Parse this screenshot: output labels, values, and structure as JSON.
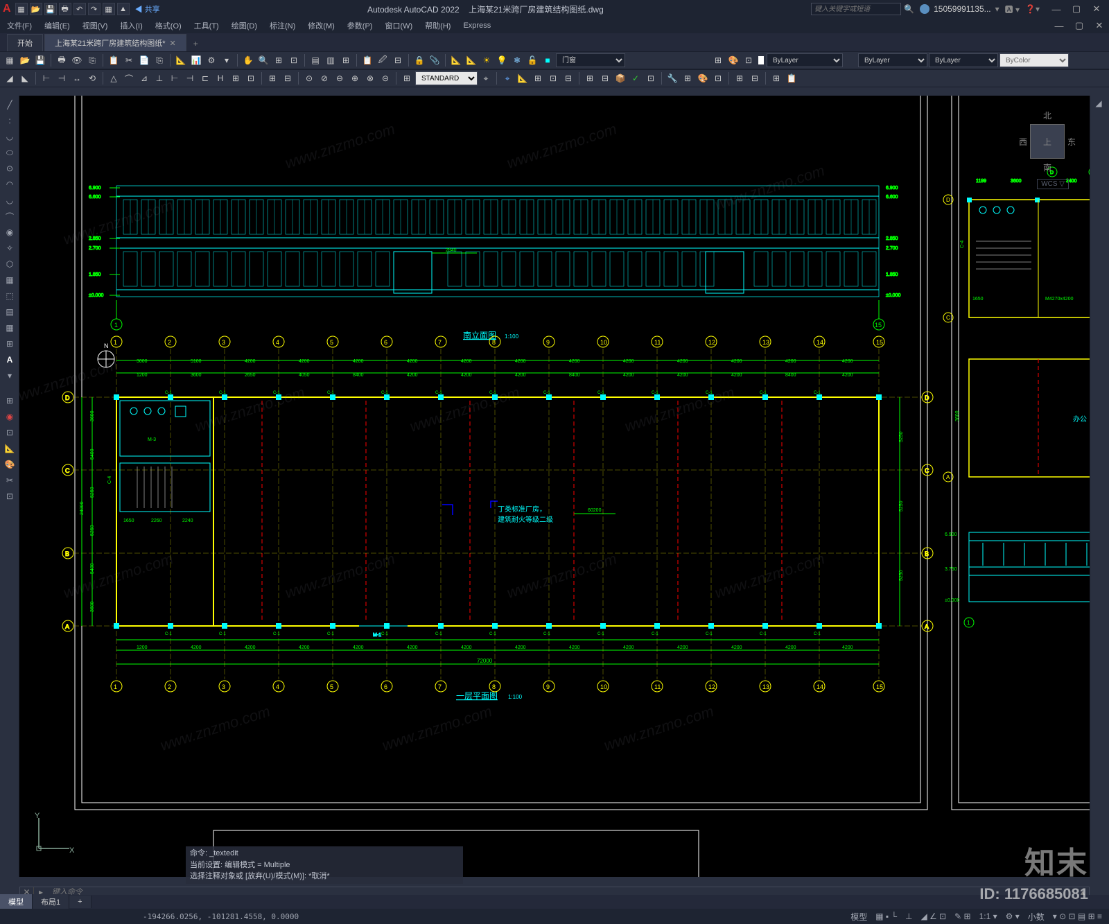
{
  "app": {
    "name": "Autodesk AutoCAD 2022",
    "file": "上海某21米跨厂房建筑结构图纸.dwg",
    "logo": "A"
  },
  "qat": [
    "▦",
    "📂",
    "💾",
    "🖶",
    "↶",
    "↷",
    "▦",
    "▲"
  ],
  "share": "共享",
  "search": {
    "ph": "键入关键字或短语",
    "icon": "🔍"
  },
  "user": {
    "name": "15059991135...",
    "icon": "👤"
  },
  "help": {
    "icon": "❓"
  },
  "winbtns": {
    "min": "—",
    "max": "▢",
    "close": "✕"
  },
  "menus": [
    "文件(F)",
    "编辑(E)",
    "视图(V)",
    "插入(I)",
    "格式(O)",
    "工具(T)",
    "绘图(D)",
    "标注(N)",
    "修改(M)",
    "参数(P)",
    "窗口(W)",
    "帮助(H)",
    "Express"
  ],
  "tabs": {
    "start": "开始",
    "file": "上海某21米跨厂房建筑结构图纸*",
    "plus": "+"
  },
  "tb1": {
    "icons": [
      "▦",
      "📂",
      "💾",
      "|",
      "🖶",
      "👁",
      "⎘",
      "|",
      "📋",
      "✂",
      "📄",
      "⎘",
      "|",
      "📐",
      "📊",
      "⚙",
      "▾",
      "|",
      "✋",
      "🔍",
      "⊞",
      "⊡",
      "|",
      "▤",
      "▥",
      "⊞",
      "|",
      "📋",
      "🖉",
      "⊟",
      "|",
      "🔒",
      "📎",
      "|",
      "📐"
    ],
    "sun": "☀",
    "bulb": "💡",
    "lock": "🔓",
    "col": "■",
    "ann_sel": "门窗",
    "lay_ic": [
      "⊞",
      "🎨",
      "⊡"
    ],
    "lay_sel": "ByLayer",
    "lw_sel": "ByLayer",
    "lt_sel": "ByLayer",
    "col_sel": "ByColor"
  },
  "tb2": {
    "icons": [
      "◢",
      "◣",
      "|",
      "⊢",
      "⊣",
      "↔",
      "⟲",
      "|",
      "△",
      "⌒",
      "⊿",
      "⊥",
      "⊢",
      "⊣",
      "⊏",
      "H",
      "⊞",
      "⊡",
      "|",
      "⊞",
      "⊟",
      "|",
      "⊙",
      "⊘",
      "⊖",
      "⊕",
      "⊗",
      "⊝",
      "|",
      "⊞"
    ],
    "style": "STANDARD",
    "right": [
      "⌖",
      "📐",
      "⊞",
      "⊡",
      "⊟",
      "|",
      "⊞",
      "⊟",
      "📦",
      "✓",
      "⊡",
      "|",
      "🔧",
      "⊞",
      "🎨",
      "⊡",
      "|",
      "⊞",
      "⊟",
      "|",
      "⊞",
      "📋"
    ]
  },
  "left_tools": [
    "╱",
    ":",
    "◡",
    "⬭",
    "⊙",
    "◠",
    "◡",
    "⌒",
    "◉",
    "✧",
    "⬡",
    "▦",
    "⬚",
    "▤",
    "▦",
    "⊞",
    "A",
    "▾"
  ],
  "left_tools2": [
    "⊞",
    "◉",
    "⊡",
    "📐",
    "🎨",
    "✂",
    "⊡"
  ],
  "right_tools": [
    "◢"
  ],
  "viewcube": {
    "n": "北",
    "s": "南",
    "e": "东",
    "w": "西",
    "top": "上",
    "wcs": "WCS ▽"
  },
  "drawing": {
    "border_color": "#ffffff",
    "elev": {
      "title": "南立面图",
      "scale": "1:100",
      "line_color": "#00ffff",
      "levels": [
        "6.900",
        "6.600",
        "2.850",
        "2.700",
        "1.850",
        "±0.000"
      ],
      "levels_r": [
        "6.900",
        "6.600",
        "2.850",
        "2.700",
        "1.850",
        "±0.000"
      ],
      "grids": [
        "①",
        "⑮"
      ],
      "dim_label": "2840"
    },
    "plan": {
      "title": "一层平面图",
      "scale": "1:100",
      "grid_color": "#ffff00",
      "col_color": "#00ffff",
      "wall_color": "#ffff00",
      "dim_color": "#00ff00",
      "fire_dash": "#ff0000",
      "grids_x": [
        "①",
        "②",
        "③",
        "④",
        "⑤",
        "⑥",
        "⑦",
        "⑧",
        "⑨",
        "⑩",
        "⑪",
        "⑫",
        "⑬",
        "⑭",
        "⑮"
      ],
      "grids_y": [
        "Ⓐ",
        "Ⓑ",
        "Ⓒ",
        "Ⓓ"
      ],
      "dims_top": [
        "3000",
        "5100",
        "4200",
        "4200",
        "4200",
        "4200",
        "4200",
        "4200",
        "4200",
        "4200",
        "4200",
        "4200",
        "4200",
        "4200",
        "4200",
        "4200"
      ],
      "dims_top2": [
        "1200",
        "3600",
        "2650",
        "4050",
        "8400",
        "4200",
        "4200",
        "4200",
        "8400",
        "4200",
        "4200",
        "4200",
        "8400",
        "4200",
        "4200",
        "4200"
      ],
      "beams": [
        "C-1",
        "C-1",
        "C-1",
        "C-1",
        "C-1",
        "C-1",
        "C-1",
        "C-1",
        "C-1"
      ],
      "dims_bot": [
        "1200",
        "4200",
        "4200",
        "4200",
        "4200",
        "4200",
        "4200",
        "4200",
        "4200",
        "4200",
        "4200",
        "4200",
        "4200",
        "4200",
        "4200"
      ],
      "dims_bot2": [
        "4200",
        "4875",
        "5400",
        "3500",
        "5400",
        "5400",
        "8400",
        "5400",
        "8400",
        "7500",
        "8400",
        "5400"
      ],
      "total_bot": "72000",
      "dims_left": [
        "24000",
        "3600",
        "5400",
        "5250",
        "5250",
        "5400",
        "3600"
      ],
      "dims_right": [
        "5250",
        "5250",
        "5250",
        "5250"
      ],
      "room_txt": [
        "丁类标准厂房，",
        "建筑耐火等级二级"
      ],
      "room_dim": "60200",
      "stair": [
        "1650",
        "2260",
        "2240"
      ],
      "door": "M-3",
      "door2": "M-1",
      "win": "C-4",
      "compass": "N"
    },
    "right_dwg": {
      "grids": [
        "Ⓐ",
        "Ⓑ",
        "Ⓒ",
        "Ⓓ"
      ],
      "dims": [
        "1199",
        "3600",
        "3400",
        "3600",
        "1650",
        "3600",
        "3600"
      ],
      "beam": "C-4",
      "beam2": "M4270x4200",
      "room": "办公",
      "elev": [
        "6.900",
        "3.750",
        "±0.000"
      ]
    }
  },
  "cmd": {
    "hist": [
      "命令: _textedit",
      "当前设置: 编辑模式 = Multiple",
      "选择注释对象或 [放弃(U)/模式(M)]: *取消*"
    ],
    "prompt_ic": "▸",
    "close": "✕",
    "ph": "键入命令"
  },
  "layout_tabs": [
    "模型",
    "布局1",
    "+"
  ],
  "status": {
    "coords": "-194266.0256, -101281.4558, 0.0000",
    "model": "模型",
    "grid": "▦ ▪ └",
    "ortho": "⊥",
    "snap": "◢ ∠ ⊡",
    "ann": "✎ ⊞",
    "scale": "1:1 ▾",
    "gear": "⚙ ▾",
    "dec": "小数",
    "iso": "▾ ⊙ ⊡ ▤ ⊞ ≡"
  },
  "watermark": {
    "url": "www.znzmo.com",
    "brand": "知末",
    "id": "ID: 1176685081"
  }
}
